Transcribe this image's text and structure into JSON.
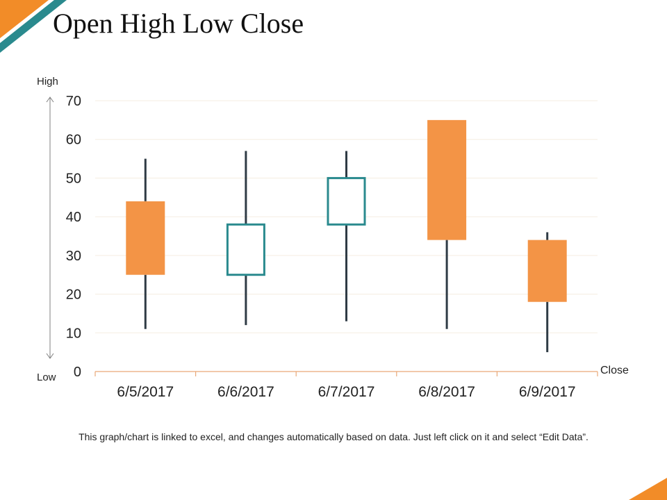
{
  "slide": {
    "title": "Open High Low Close",
    "footnote": "This graph/chart is linked to excel, and changes automatically based on data. Just left click on it and select “Edit Data”."
  },
  "colors": {
    "up_stroke": "#2A8A8E",
    "down_fill": "#F39446",
    "wick": "#2F3B45",
    "grid": "#F5EDE0",
    "x_axis": "#E9A878",
    "accent_orange": "#F28C28",
    "accent_teal": "#2A8A8E"
  },
  "chart_data": {
    "type": "ohlc",
    "title": "",
    "categories": [
      "6/5/2017",
      "6/6/2017",
      "6/7/2017",
      "6/8/2017",
      "6/9/2017"
    ],
    "series": [
      {
        "open": 44,
        "high": 55,
        "low": 11,
        "close": 25
      },
      {
        "open": 25,
        "high": 57,
        "low": 12,
        "close": 38
      },
      {
        "open": 38,
        "high": 57,
        "low": 13,
        "close": 50
      },
      {
        "open": 65,
        "high": 65,
        "low": 11,
        "close": 34
      },
      {
        "open": 34,
        "high": 36,
        "low": 5,
        "close": 18
      }
    ],
    "yticks": [
      0,
      10,
      20,
      30,
      40,
      50,
      60,
      70
    ],
    "ylim": [
      0,
      70
    ],
    "y_arrow_top_label": "High",
    "y_arrow_bottom_label": "Low",
    "x_end_label": "Close",
    "grid": true
  }
}
